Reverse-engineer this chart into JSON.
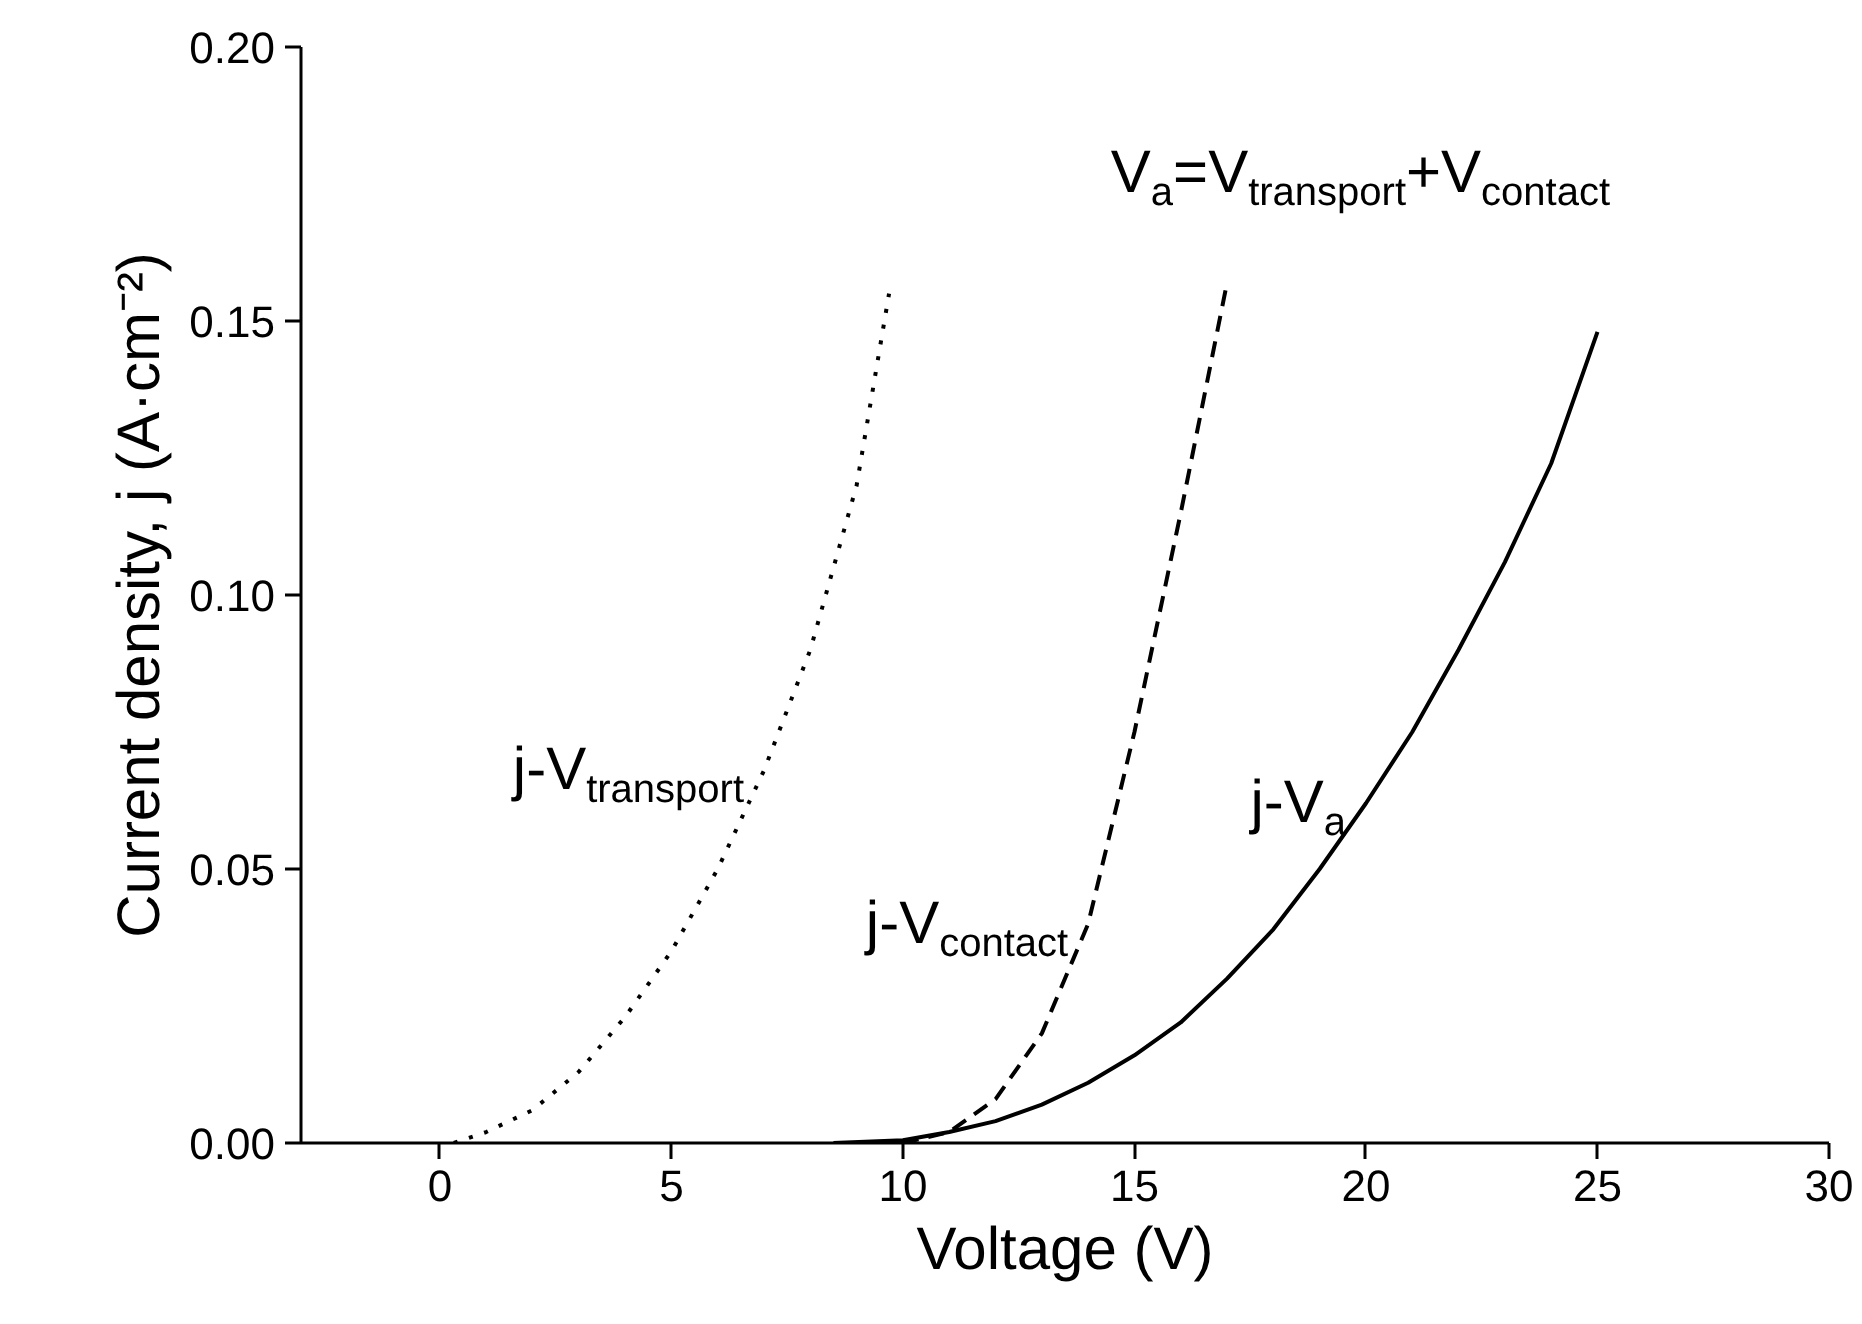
{
  "chart_data": {
    "type": "line",
    "xlabel": "Voltage (V)",
    "ylabel": "Current density, j (A·cm⁻²)",
    "xlim": [
      -3,
      30
    ],
    "ylim": [
      0,
      0.2
    ],
    "xticks": [
      0,
      5,
      10,
      15,
      20,
      25,
      30
    ],
    "yticks": [
      {
        "value": 0,
        "label": "0.00"
      },
      {
        "value": 0.05,
        "label": "0.05"
      },
      {
        "value": 0.1,
        "label": "0.10"
      },
      {
        "value": 0.15,
        "label": "0.15"
      },
      {
        "value": 0.2,
        "label": "0.20"
      }
    ],
    "grid": false,
    "annotations": [
      "V$_{a}$=V$_{transport}$+V$_{contact}$"
    ],
    "series": [
      {
        "name": "j-V$_{transport}$",
        "color": "#000000",
        "line_style": "dotted",
        "x": [
          0.3,
          1,
          2,
          3,
          4,
          5,
          6,
          7,
          8,
          9,
          9.7
        ],
        "values": [
          0,
          0.002,
          0.006,
          0.013,
          0.023,
          0.035,
          0.05,
          0.068,
          0.09,
          0.12,
          0.155
        ]
      },
      {
        "name": "j-V$_{contact}$",
        "color": "#000000",
        "line_style": "dashed",
        "x": [
          10,
          11,
          12,
          13,
          14,
          15,
          16,
          17
        ],
        "values": [
          0,
          0.002,
          0.008,
          0.02,
          0.04,
          0.075,
          0.115,
          0.157
        ]
      },
      {
        "name": "j-V$_{a}$",
        "color": "#000000",
        "line_style": "solid",
        "x": [
          8.5,
          10,
          11,
          12,
          13,
          14,
          15,
          16,
          17,
          18,
          19,
          20,
          21,
          22,
          23,
          24,
          25
        ],
        "values": [
          0,
          0.0005,
          0.002,
          0.004,
          0.007,
          0.011,
          0.016,
          0.022,
          0.03,
          0.039,
          0.05,
          0.062,
          0.075,
          0.09,
          0.106,
          0.124,
          0.148
        ]
      }
    ]
  }
}
